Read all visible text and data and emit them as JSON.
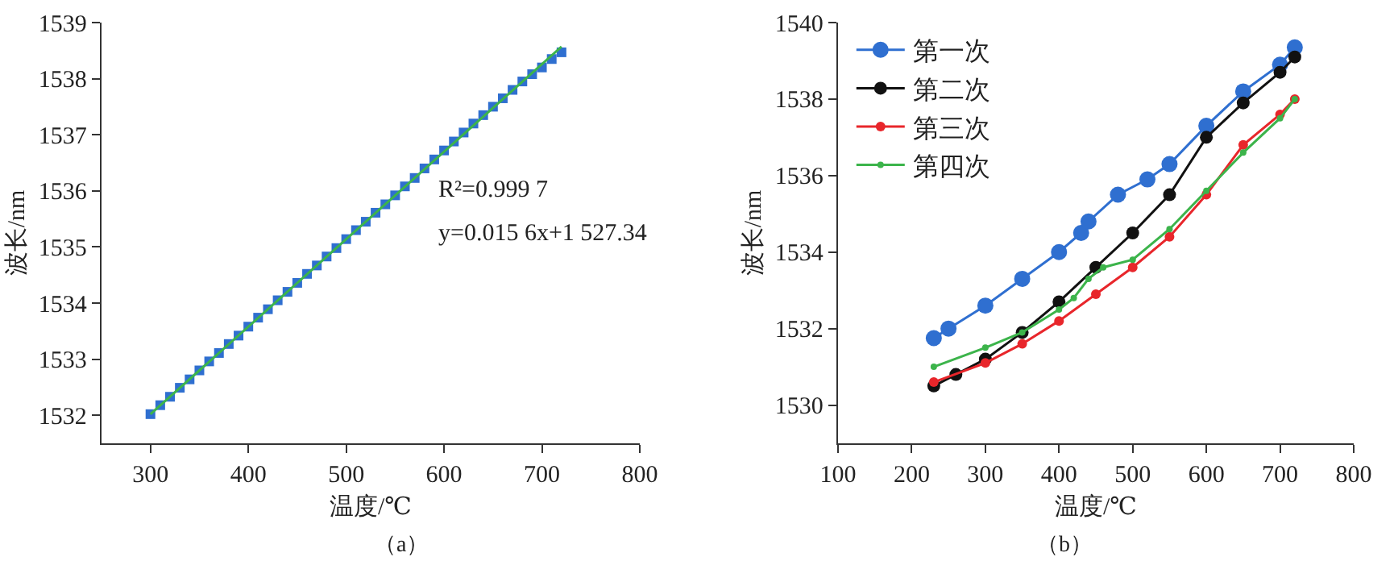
{
  "chart_data": [
    {
      "type": "scatter",
      "title": "（a）",
      "xlabel": "温度/℃",
      "ylabel": "波长/nm",
      "xlim": [
        250,
        800
      ],
      "ylim": [
        1531.5,
        1539
      ],
      "xticks": [
        300,
        400,
        500,
        600,
        700,
        800
      ],
      "yticks": [
        1532,
        1533,
        1534,
        1535,
        1536,
        1537,
        1538,
        1539
      ],
      "marker": "square",
      "legend": false,
      "grid": false,
      "annotations": [
        "R²=0.999 7",
        "y=0.015 6x+1 527.34"
      ],
      "series": [
        {
          "type": "scatter",
          "color": "#2f6fd0",
          "x": [
            300,
            310,
            320,
            330,
            340,
            350,
            360,
            370,
            380,
            390,
            400,
            410,
            420,
            430,
            440,
            450,
            460,
            470,
            480,
            490,
            500,
            510,
            520,
            530,
            540,
            550,
            560,
            570,
            580,
            590,
            600,
            610,
            620,
            630,
            640,
            650,
            660,
            670,
            680,
            690,
            700,
            710,
            720
          ],
          "values": [
            1532.02,
            1532.18,
            1532.33,
            1532.49,
            1532.64,
            1532.8,
            1532.96,
            1533.11,
            1533.27,
            1533.42,
            1533.58,
            1533.74,
            1533.89,
            1534.05,
            1534.2,
            1534.36,
            1534.52,
            1534.67,
            1534.83,
            1534.98,
            1535.14,
            1535.3,
            1535.45,
            1535.61,
            1535.76,
            1535.92,
            1536.08,
            1536.23,
            1536.4,
            1536.56,
            1536.72,
            1536.88,
            1537.04,
            1537.2,
            1537.35,
            1537.5,
            1537.65,
            1537.8,
            1537.95,
            1538.08,
            1538.2,
            1538.35,
            1538.47
          ]
        },
        {
          "type": "line",
          "color": "#3cb44b",
          "marker": "none",
          "x": [
            300,
            720
          ],
          "values": [
            1532.02,
            1538.57
          ]
        }
      ]
    },
    {
      "type": "line",
      "title": "（b）",
      "xlabel": "温度/℃",
      "ylabel": "波长/nm",
      "xlim": [
        100,
        800
      ],
      "ylim": [
        1529,
        1540
      ],
      "xticks": [
        100,
        200,
        300,
        400,
        500,
        600,
        700,
        800
      ],
      "yticks": [
        1530,
        1532,
        1534,
        1536,
        1538,
        1540
      ],
      "marker": "circle",
      "legend": "top left",
      "grid": false,
      "series": [
        {
          "name": "第一次",
          "color": "#2f6fd0",
          "x": [
            230,
            250,
            300,
            350,
            400,
            430,
            440,
            480,
            520,
            550,
            600,
            650,
            700,
            720
          ],
          "values": [
            1531.75,
            1532.0,
            1532.6,
            1533.3,
            1534.0,
            1534.5,
            1534.8,
            1535.5,
            1535.9,
            1536.3,
            1537.3,
            1538.2,
            1538.9,
            1539.35
          ]
        },
        {
          "name": "第二次",
          "color": "#111111",
          "x": [
            230,
            260,
            300,
            350,
            400,
            450,
            500,
            550,
            600,
            650,
            700,
            720
          ],
          "values": [
            1530.5,
            1530.8,
            1531.2,
            1531.9,
            1532.7,
            1533.6,
            1534.5,
            1535.5,
            1537.0,
            1537.9,
            1538.7,
            1539.1
          ]
        },
        {
          "name": "第三次",
          "color": "#e8262b",
          "x": [
            230,
            300,
            350,
            400,
            450,
            500,
            550,
            600,
            650,
            700,
            720
          ],
          "values": [
            1530.6,
            1531.1,
            1531.6,
            1532.2,
            1532.9,
            1533.6,
            1534.4,
            1535.5,
            1536.8,
            1537.6,
            1538.0
          ]
        },
        {
          "name": "第四次",
          "color": "#3cb44b",
          "x": [
            230,
            300,
            350,
            400,
            420,
            440,
            460,
            500,
            550,
            600,
            650,
            700,
            720
          ],
          "values": [
            1531.0,
            1531.5,
            1531.9,
            1532.5,
            1532.8,
            1533.3,
            1533.6,
            1533.8,
            1534.6,
            1535.6,
            1536.6,
            1537.5,
            1538.0
          ]
        }
      ]
    }
  ]
}
